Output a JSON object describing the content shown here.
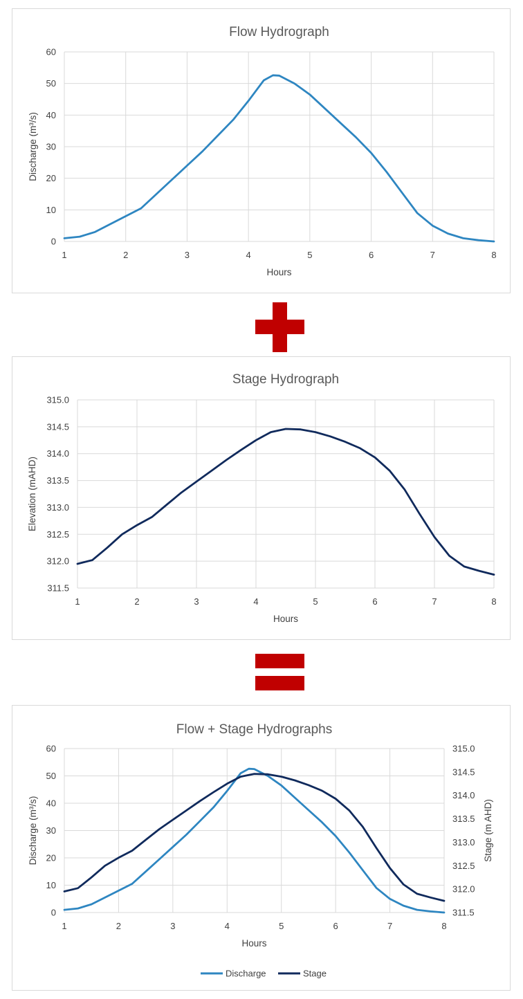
{
  "colors": {
    "discharge": "#2e86c1",
    "stage": "#102a5c",
    "operator": "#c00000",
    "grid": "#d9d9d9"
  },
  "operators": {
    "plus": "plus-icon",
    "equals": "equals-icon"
  },
  "chart_data": [
    {
      "type": "line",
      "title": "Flow Hydrograph",
      "xlabel": "Hours",
      "ylabel": "Discharge (m³/s)",
      "xlim": [
        1,
        8
      ],
      "ylim": [
        0,
        60
      ],
      "xticks": [
        "1",
        "2",
        "3",
        "4",
        "5",
        "6",
        "7",
        "8"
      ],
      "yticks": [
        "0",
        "10",
        "20",
        "30",
        "40",
        "50",
        "60"
      ],
      "grid": true,
      "series": [
        {
          "x": [
            1,
            1.25,
            1.5,
            1.75,
            2,
            2.25,
            2.5,
            2.75,
            3,
            3.25,
            3.5,
            3.75,
            4,
            4.25,
            4.4,
            4.5,
            4.75,
            5,
            5.25,
            5.5,
            5.75,
            6,
            6.25,
            6.5,
            6.75,
            7,
            7.25,
            7.5,
            7.75,
            8
          ],
          "y": [
            1,
            1.5,
            3,
            5.5,
            8,
            10.5,
            15,
            19.5,
            24,
            28.5,
            33.5,
            38.5,
            44.5,
            51,
            52.6,
            52.5,
            50,
            46.5,
            42,
            37.5,
            33,
            28,
            22,
            15.5,
            9,
            5,
            2.5,
            1,
            0.4,
            0
          ]
        }
      ]
    },
    {
      "type": "line",
      "title": "Stage Hydrograph",
      "xlabel": "Hours",
      "ylabel": "Elevation (mAHD)",
      "xlim": [
        1,
        8
      ],
      "ylim": [
        311.5,
        315.0
      ],
      "xticks": [
        "1",
        "2",
        "3",
        "4",
        "5",
        "6",
        "7",
        "8"
      ],
      "yticks": [
        "311.5",
        "312.0",
        "312.5",
        "313.0",
        "313.5",
        "314.0",
        "314.5",
        "315.0"
      ],
      "grid": true,
      "series": [
        {
          "x": [
            1,
            1.25,
            1.5,
            1.75,
            2,
            2.25,
            2.5,
            2.75,
            3,
            3.25,
            3.5,
            3.75,
            4,
            4.25,
            4.5,
            4.75,
            5,
            5.25,
            5.5,
            5.75,
            6,
            6.25,
            6.5,
            6.75,
            7,
            7.25,
            7.5,
            7.75,
            8
          ],
          "y": [
            311.95,
            312.02,
            312.25,
            312.5,
            312.67,
            312.82,
            313.05,
            313.28,
            313.48,
            313.68,
            313.88,
            314.07,
            314.25,
            314.4,
            314.46,
            314.45,
            314.4,
            314.32,
            314.22,
            314.1,
            313.93,
            313.68,
            313.33,
            312.88,
            312.45,
            312.1,
            311.9,
            311.82,
            311.75
          ]
        }
      ]
    },
    {
      "type": "line",
      "title": "Flow + Stage Hydrographs",
      "xlabel": "Hours",
      "ylabel": "Discharge (m³/s)",
      "y2label": "Stage (m AHD)",
      "xlim": [
        1,
        8
      ],
      "ylim": [
        0,
        60
      ],
      "y2lim": [
        311.5,
        315.0
      ],
      "xticks": [
        "1",
        "2",
        "3",
        "4",
        "5",
        "6",
        "7",
        "8"
      ],
      "yticks": [
        "0",
        "10",
        "20",
        "30",
        "40",
        "50",
        "60"
      ],
      "y2ticks": [
        "311.5",
        "312.0",
        "312.5",
        "313.0",
        "313.5",
        "314.0",
        "314.5",
        "315.0"
      ],
      "grid": true,
      "legend": "bottom",
      "series": [
        {
          "name": "Discharge",
          "axis": "left",
          "x": [
            1,
            1.25,
            1.5,
            1.75,
            2,
            2.25,
            2.5,
            2.75,
            3,
            3.25,
            3.5,
            3.75,
            4,
            4.25,
            4.4,
            4.5,
            4.75,
            5,
            5.25,
            5.5,
            5.75,
            6,
            6.25,
            6.5,
            6.75,
            7,
            7.25,
            7.5,
            7.75,
            8
          ],
          "y": [
            1,
            1.5,
            3,
            5.5,
            8,
            10.5,
            15,
            19.5,
            24,
            28.5,
            33.5,
            38.5,
            44.5,
            51,
            52.6,
            52.5,
            50,
            46.5,
            42,
            37.5,
            33,
            28,
            22,
            15.5,
            9,
            5,
            2.5,
            1,
            0.4,
            0
          ]
        },
        {
          "name": "Stage",
          "axis": "right",
          "x": [
            1,
            1.25,
            1.5,
            1.75,
            2,
            2.25,
            2.5,
            2.75,
            3,
            3.25,
            3.5,
            3.75,
            4,
            4.25,
            4.5,
            4.75,
            5,
            5.25,
            5.5,
            5.75,
            6,
            6.25,
            6.5,
            6.75,
            7,
            7.25,
            7.5,
            7.75,
            8
          ],
          "y": [
            311.95,
            312.02,
            312.25,
            312.5,
            312.67,
            312.82,
            313.05,
            313.28,
            313.48,
            313.68,
            313.88,
            314.07,
            314.25,
            314.4,
            314.46,
            314.45,
            314.4,
            314.32,
            314.22,
            314.1,
            313.93,
            313.68,
            313.33,
            312.88,
            312.45,
            312.1,
            311.9,
            311.82,
            311.75
          ]
        }
      ]
    }
  ]
}
